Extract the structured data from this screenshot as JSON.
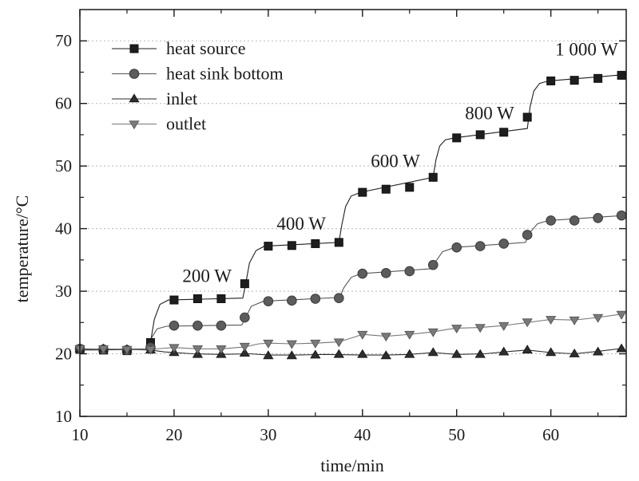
{
  "chart_data": {
    "type": "line",
    "title": "",
    "xlabel": "time/min",
    "ylabel": "temperature/°C",
    "xlim": [
      10,
      68
    ],
    "ylim": [
      10,
      75
    ],
    "xticks": [
      10,
      20,
      30,
      40,
      50,
      60
    ],
    "yticks": [
      10,
      20,
      30,
      40,
      50,
      60,
      70
    ],
    "xtick_labels": [
      "10",
      "20",
      "30",
      "40",
      "50",
      "60"
    ],
    "ytick_labels": [
      "10",
      "20",
      "30",
      "40",
      "50",
      "60",
      "70"
    ],
    "grid": true,
    "legend_position": "top-left",
    "annotations": [
      {
        "text": "200 W",
        "x": 23.5,
        "y": 31.5
      },
      {
        "text": "400 W",
        "x": 33.5,
        "y": 39.8
      },
      {
        "text": "600 W",
        "x": 43.5,
        "y": 49.8
      },
      {
        "text": "800 W",
        "x": 53.5,
        "y": 57.5
      },
      {
        "text": "1 000 W",
        "x": 63.8,
        "y": 67.7
      }
    ],
    "series": [
      {
        "name": "heat source",
        "marker": "square",
        "x": [
          10,
          12.5,
          15,
          17.5,
          20,
          22.5,
          25,
          27.5,
          30,
          32.5,
          35,
          37.5,
          40,
          42.5,
          45,
          47.5,
          50,
          52.5,
          55,
          57.5,
          60,
          62.5,
          65,
          67.5
        ],
        "values": [
          20.7,
          20.6,
          20.5,
          21.8,
          28.6,
          28.8,
          28.8,
          31.2,
          37.2,
          37.3,
          37.6,
          37.8,
          45.8,
          46.3,
          46.6,
          48.2,
          54.5,
          55.0,
          55.4,
          57.8,
          63.6,
          63.7,
          64.0,
          64.5
        ],
        "line_x": [
          10,
          17.2,
          17.5,
          17.9,
          18.5,
          19.4,
          27.3,
          27.6,
          28.0,
          28.7,
          29.6,
          37.5,
          37.8,
          38.2,
          38.8,
          39.8,
          47.5,
          47.8,
          48.2,
          48.8,
          49.8,
          57.5,
          57.8,
          58.2,
          58.8,
          59.8,
          67.8
        ],
        "line_y": [
          20.6,
          20.7,
          21.8,
          25.5,
          27.9,
          28.6,
          28.9,
          31.2,
          34.5,
          36.5,
          37.2,
          37.8,
          40.5,
          43.5,
          45.2,
          45.8,
          48.2,
          51.0,
          53.2,
          54.2,
          54.5,
          56.0,
          59.5,
          62.0,
          63.2,
          63.6,
          64.6
        ]
      },
      {
        "name": "heat sink bottom",
        "marker": "circle",
        "x": [
          10,
          12.5,
          15,
          17.5,
          20,
          22.5,
          25,
          27.5,
          30,
          32.5,
          35,
          37.5,
          40,
          42.5,
          45,
          47.5,
          50,
          52.5,
          55,
          57.5,
          60,
          62.5,
          65,
          67.5
        ],
        "values": [
          20.8,
          20.7,
          20.6,
          21.0,
          24.5,
          24.5,
          24.5,
          25.8,
          28.4,
          28.5,
          28.8,
          28.9,
          32.8,
          32.9,
          33.2,
          34.2,
          37.0,
          37.2,
          37.6,
          39.0,
          41.3,
          41.3,
          41.7,
          42.1
        ],
        "line_x": [
          10,
          17.3,
          17.6,
          18.2,
          19.2,
          27.2,
          27.6,
          28.2,
          29.5,
          37.6,
          38.0,
          38.8,
          39.8,
          47.4,
          47.8,
          48.5,
          49.8,
          57.3,
          57.8,
          58.6,
          59.8,
          67.8
        ],
        "line_y": [
          20.7,
          20.8,
          22.5,
          24.0,
          24.4,
          24.6,
          25.8,
          27.6,
          28.4,
          29.0,
          30.5,
          32.2,
          32.8,
          33.6,
          34.8,
          36.3,
          37.0,
          37.8,
          39.4,
          40.8,
          41.3,
          42.1
        ]
      },
      {
        "name": "inlet",
        "marker": "triangle-up",
        "x": [
          10,
          12.5,
          15,
          17.5,
          20,
          22.5,
          25,
          27.5,
          30,
          32.5,
          35,
          37.5,
          40,
          42.5,
          45,
          47.5,
          50,
          52.5,
          55,
          57.5,
          60,
          62.5,
          65,
          67.5
        ],
        "values": [
          20.8,
          20.8,
          20.7,
          20.6,
          20.2,
          19.9,
          19.9,
          20.1,
          19.7,
          19.7,
          19.8,
          19.9,
          19.9,
          19.7,
          19.9,
          20.2,
          19.9,
          19.9,
          20.3,
          20.6,
          20.2,
          20.0,
          20.3,
          20.8
        ],
        "line_x": [
          10,
          15,
          17.5,
          19,
          22,
          25,
          28,
          30,
          33,
          36,
          40,
          42.5,
          45,
          47.5,
          50,
          53,
          55,
          57.5,
          60,
          62.5,
          65,
          67.8
        ],
        "line_y": [
          20.8,
          20.7,
          20.6,
          20.3,
          20.0,
          19.9,
          20.0,
          19.8,
          19.8,
          19.9,
          19.8,
          19.8,
          19.9,
          20.2,
          19.9,
          20.0,
          20.3,
          20.6,
          20.2,
          20.0,
          20.4,
          20.9
        ]
      },
      {
        "name": "outlet",
        "marker": "triangle-down",
        "x": [
          10,
          12.5,
          15,
          17.5,
          20,
          22.5,
          25,
          27.5,
          30,
          32.5,
          35,
          37.5,
          40,
          42.5,
          45,
          47.5,
          50,
          52.5,
          55,
          57.5,
          60,
          62.5,
          65,
          67.5
        ],
        "values": [
          20.8,
          20.8,
          20.7,
          20.7,
          21.0,
          20.8,
          20.8,
          21.2,
          21.7,
          21.6,
          21.7,
          21.9,
          23.1,
          22.8,
          23.1,
          23.5,
          24.1,
          24.2,
          24.5,
          25.1,
          25.5,
          25.4,
          25.8,
          26.3
        ],
        "line_x": [
          10,
          17.5,
          19,
          20,
          22.5,
          25,
          27.5,
          29,
          30,
          32.5,
          35,
          37.5,
          39,
          40,
          42.5,
          45,
          47.5,
          49,
          50,
          52.5,
          55,
          57.5,
          59,
          60,
          62.5,
          65,
          67.8
        ],
        "line_y": [
          20.8,
          20.7,
          20.9,
          21.0,
          20.8,
          20.8,
          21.1,
          21.6,
          21.7,
          21.6,
          21.7,
          21.9,
          22.6,
          23.1,
          22.8,
          23.1,
          23.5,
          23.9,
          24.1,
          24.2,
          24.5,
          25.0,
          25.3,
          25.5,
          25.4,
          25.8,
          26.4
        ]
      }
    ]
  }
}
